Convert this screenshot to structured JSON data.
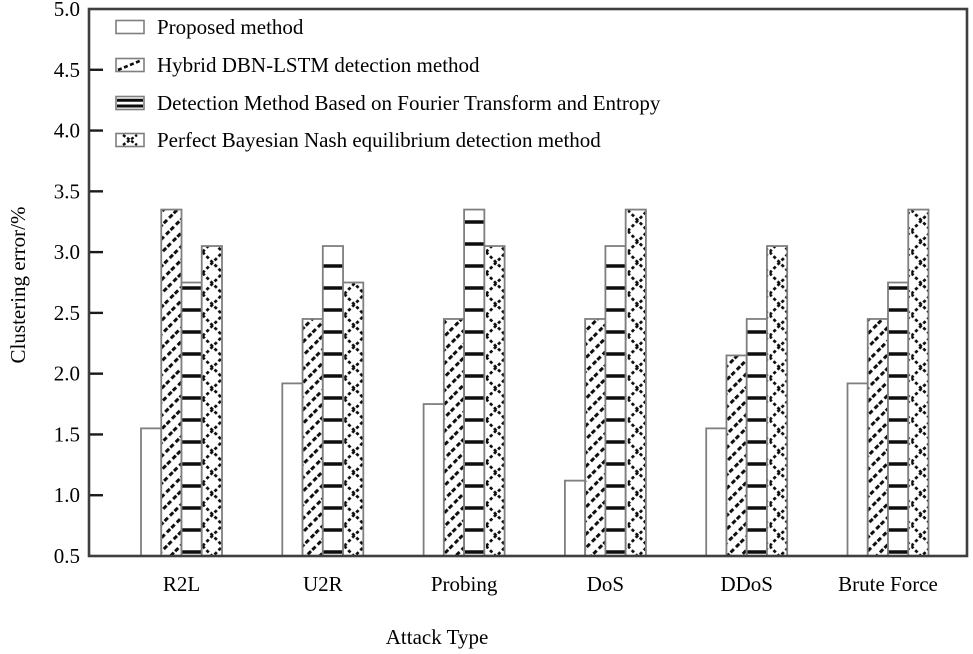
{
  "figure": {
    "background": "#ffffff",
    "frame_color": "#3f3f3f",
    "tick_color": "#1a1a1a",
    "bar_edge_color": "#7f7f7f",
    "bar_fill_color": "#ffffff",
    "hatch_color": "#0d0d0d",
    "text_color": "#000000"
  },
  "chart_data": {
    "type": "bar",
    "title": "",
    "xlabel": "Attack Type",
    "ylabel": "Clustering error/%",
    "ylim": [
      0.5,
      5.0
    ],
    "ytick_step": 0.5,
    "ytick_labels": [
      "0.5",
      "1.0",
      "1.5",
      "2.0",
      "2.5",
      "3.0",
      "3.5",
      "4.0",
      "4.5",
      "5.0"
    ],
    "grid": false,
    "legend_position": "top-left-inside",
    "categories": [
      "R2L",
      "U2R",
      "Probing",
      "DoS",
      "DDoS",
      "Brute Force"
    ],
    "series": [
      {
        "name": "Proposed method",
        "hatch": "none",
        "values": [
          1.55,
          1.92,
          1.75,
          1.12,
          1.55,
          1.92
        ]
      },
      {
        "name": "Hybrid DBN-LSTM detection method",
        "hatch": "diagonal",
        "values": [
          3.35,
          2.45,
          2.45,
          2.45,
          2.15,
          2.45
        ]
      },
      {
        "name": "Detection Method Based on Fourier Transform and Entropy",
        "hatch": "horizontal",
        "values": [
          2.75,
          3.05,
          3.35,
          3.05,
          2.45,
          2.75
        ]
      },
      {
        "name": "Perfect Bayesian Nash equilibrium detection method",
        "hatch": "crosshatch",
        "values": [
          3.05,
          2.75,
          3.05,
          3.35,
          3.05,
          3.35
        ]
      }
    ]
  }
}
